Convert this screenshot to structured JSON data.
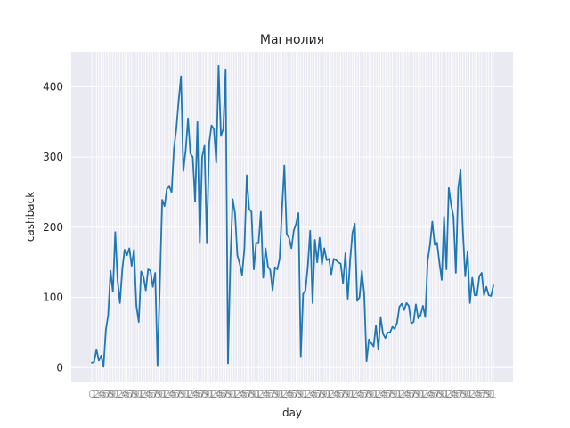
{
  "chart_data": {
    "type": "line",
    "title": "Магнолия",
    "xlabel": "day",
    "ylabel": "cashback",
    "ylim": [
      -20,
      450
    ],
    "yticks": [
      0,
      100,
      200,
      300,
      400
    ],
    "grid": true,
    "background": "#eaeaf2",
    "line_color": "#1f77b4",
    "x_tick_labels_note": "dense overlapping day labels along x axis",
    "series": [
      {
        "values": [
          7,
          8,
          26,
          10,
          17,
          1,
          53,
          75,
          138,
          108,
          193,
          125,
          92,
          140,
          168,
          160,
          170,
          145,
          168,
          88,
          65,
          137,
          130,
          110,
          140,
          138,
          115,
          135,
          2,
          120,
          239,
          230,
          255,
          258,
          250,
          312,
          340,
          380,
          415,
          280,
          310,
          355,
          305,
          300,
          237,
          350,
          177,
          300,
          316,
          177,
          320,
          345,
          340,
          292,
          430,
          330,
          340,
          425,
          6,
          150,
          240,
          220,
          160,
          148,
          132,
          170,
          274,
          226,
          222,
          140,
          178,
          177,
          222,
          128,
          170,
          144,
          139,
          110,
          143,
          140,
          155,
          225,
          288,
          190,
          185,
          170,
          195,
          205,
          220,
          16,
          105,
          110,
          145,
          195,
          92,
          182,
          150,
          185,
          147,
          170,
          153,
          155,
          133,
          155,
          153,
          150,
          148,
          120,
          163,
          98,
          153,
          192,
          205,
          95,
          100,
          138,
          105,
          9,
          40,
          35,
          30,
          60,
          26,
          72,
          48,
          42,
          50,
          50,
          58,
          55,
          64,
          87,
          91,
          82,
          92,
          88,
          63,
          65,
          90,
          70,
          75,
          88,
          72,
          152,
          175,
          208,
          175,
          178,
          150,
          125,
          215,
          140,
          256,
          232,
          215,
          135,
          255,
          282,
          195,
          130,
          165,
          92,
          128,
          103,
          103,
          130,
          135,
          103,
          115,
          103,
          102,
          117
        ]
      }
    ]
  }
}
